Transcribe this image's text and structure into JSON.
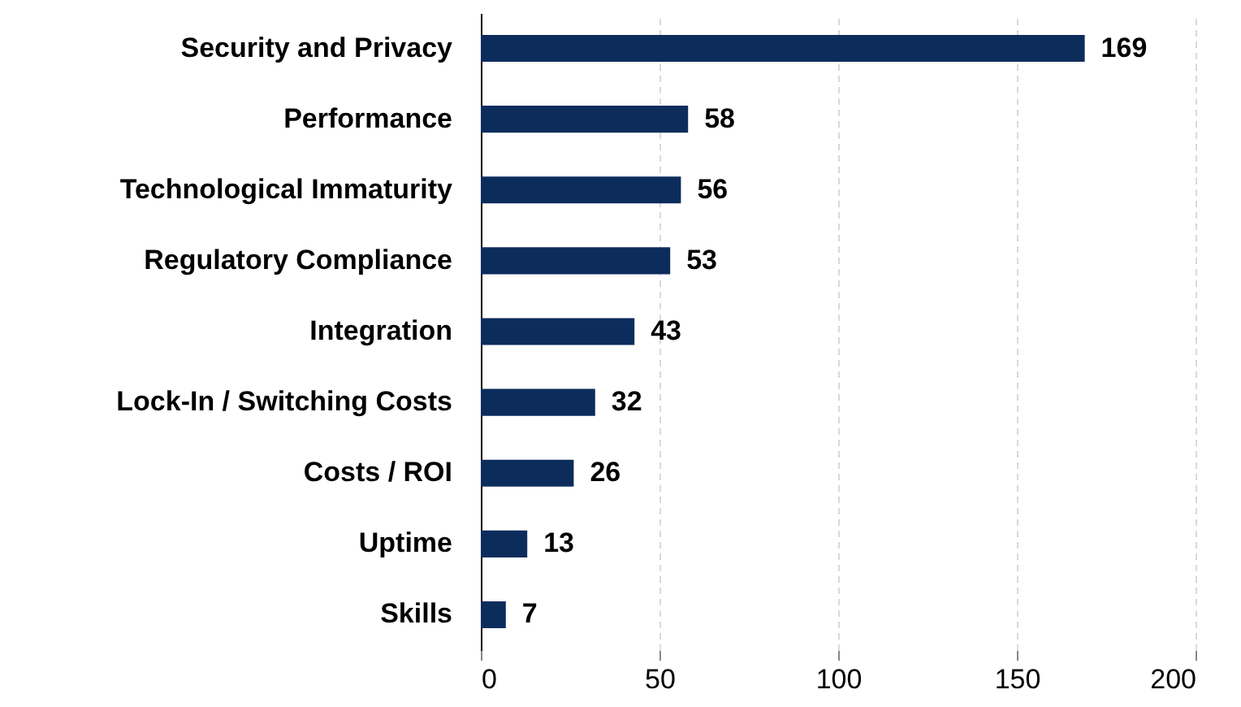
{
  "chart_data": {
    "type": "bar",
    "orientation": "horizontal",
    "categories": [
      "Security and Privacy",
      "Performance",
      "Technological Immaturity",
      "Regulatory Compliance",
      "Integration",
      "Lock-In / Switching Costs",
      "Costs / ROI",
      "Uptime",
      "Skills"
    ],
    "values": [
      169,
      58,
      56,
      53,
      43,
      32,
      26,
      13,
      7
    ],
    "color": "#0c2c5c",
    "xlim": [
      0,
      200
    ],
    "xticks": [
      0,
      50,
      100,
      150,
      200
    ],
    "grid": "x",
    "data_labels": true
  }
}
